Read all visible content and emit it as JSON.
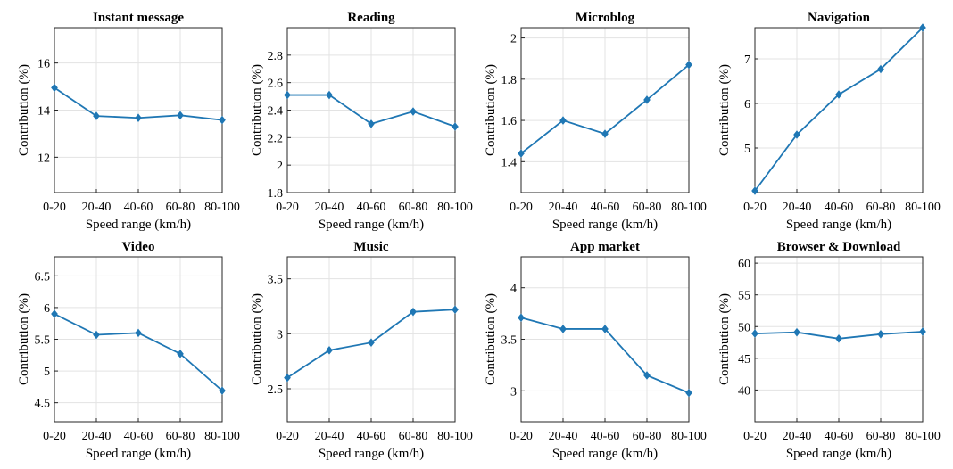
{
  "chart_data": [
    {
      "type": "line",
      "title": "Instant message",
      "xlabel": "Speed range (km/h)",
      "ylabel": "Contribution (%)",
      "categories": [
        "0-20",
        "20-40",
        "40-60",
        "60-80",
        "80-100"
      ],
      "series": [
        {
          "values": [
            14.95,
            13.75,
            13.67,
            13.78,
            13.58
          ]
        }
      ],
      "ylim": [
        10.5,
        17.5
      ],
      "yticks": [
        12,
        14,
        16
      ],
      "ytick_labels": [
        "12",
        "14",
        "16"
      ],
      "grid": true,
      "color": "#1f77b4"
    },
    {
      "type": "line",
      "title": "Reading",
      "xlabel": "Speed range (km/h)",
      "ylabel": "Contribution (%)",
      "categories": [
        "0-20",
        "20-40",
        "40-60",
        "60-80",
        "80-100"
      ],
      "series": [
        {
          "values": [
            2.51,
            2.51,
            2.3,
            2.39,
            2.28
          ]
        }
      ],
      "ylim": [
        1.8,
        3.0
      ],
      "yticks": [
        1.8,
        2.0,
        2.2,
        2.4,
        2.6,
        2.8
      ],
      "ytick_labels": [
        "1.8",
        "2",
        "2.2",
        "2.4",
        "2.6",
        "2.8"
      ],
      "grid": true,
      "color": "#1f77b4"
    },
    {
      "type": "line",
      "title": "Microblog",
      "xlabel": "Speed range (km/h)",
      "ylabel": "Contribution (%)",
      "categories": [
        "0-20",
        "20-40",
        "40-60",
        "60-80",
        "80-100"
      ],
      "series": [
        {
          "values": [
            1.44,
            1.6,
            1.535,
            1.7,
            1.87
          ]
        }
      ],
      "ylim": [
        1.25,
        2.05
      ],
      "yticks": [
        1.4,
        1.6,
        1.8,
        2.0
      ],
      "ytick_labels": [
        "1.4",
        "1.6",
        "1.8",
        "2"
      ],
      "grid": true,
      "color": "#1f77b4"
    },
    {
      "type": "line",
      "title": "Navigation",
      "xlabel": "Speed range (km/h)",
      "ylabel": "Contribution (%)",
      "categories": [
        "0-20",
        "20-40",
        "40-60",
        "60-80",
        "80-100"
      ],
      "series": [
        {
          "values": [
            4.04,
            5.3,
            6.2,
            6.77,
            7.7
          ]
        }
      ],
      "ylim": [
        4.0,
        7.7
      ],
      "yticks": [
        5,
        6,
        7
      ],
      "ytick_labels": [
        "5",
        "6",
        "7"
      ],
      "grid": true,
      "color": "#1f77b4"
    },
    {
      "type": "line",
      "title": "Video",
      "xlabel": "Speed range (km/h)",
      "ylabel": "Contribution (%)",
      "categories": [
        "0-20",
        "20-40",
        "40-60",
        "60-80",
        "80-100"
      ],
      "series": [
        {
          "values": [
            5.9,
            5.57,
            5.6,
            5.27,
            4.69
          ]
        }
      ],
      "ylim": [
        4.2,
        6.8
      ],
      "yticks": [
        4.5,
        5.0,
        5.5,
        6.0,
        6.5
      ],
      "ytick_labels": [
        "4.5",
        "5",
        "5.5",
        "6",
        "6.5"
      ],
      "grid": true,
      "color": "#1f77b4"
    },
    {
      "type": "line",
      "title": "Music",
      "xlabel": "Speed range (km/h)",
      "ylabel": "Contribution (%)",
      "categories": [
        "0-20",
        "20-40",
        "40-60",
        "60-80",
        "80-100"
      ],
      "series": [
        {
          "values": [
            2.6,
            2.85,
            2.92,
            3.2,
            3.22
          ]
        }
      ],
      "ylim": [
        2.2,
        3.7
      ],
      "yticks": [
        2.5,
        3.0,
        3.5
      ],
      "ytick_labels": [
        "2.5",
        "3",
        "3.5"
      ],
      "grid": true,
      "color": "#1f77b4"
    },
    {
      "type": "line",
      "title": "App market",
      "xlabel": "Speed range (km/h)",
      "ylabel": "Contribution (%)",
      "categories": [
        "0-20",
        "20-40",
        "40-60",
        "60-80",
        "80-100"
      ],
      "series": [
        {
          "values": [
            3.71,
            3.6,
            3.6,
            3.15,
            2.98
          ]
        }
      ],
      "ylim": [
        2.7,
        4.3
      ],
      "yticks": [
        3.0,
        3.5,
        4.0
      ],
      "ytick_labels": [
        "3",
        "3.5",
        "4"
      ],
      "grid": true,
      "color": "#1f77b4"
    },
    {
      "type": "line",
      "title": "Browser & Download",
      "xlabel": "Speed range (km/h)",
      "ylabel": "Contribution (%)",
      "categories": [
        "0-20",
        "20-40",
        "40-60",
        "60-80",
        "80-100"
      ],
      "series": [
        {
          "values": [
            48.9,
            49.1,
            48.1,
            48.8,
            49.2
          ]
        }
      ],
      "ylim": [
        35,
        61
      ],
      "yticks": [
        40,
        45,
        50,
        55,
        60
      ],
      "ytick_labels": [
        "40",
        "45",
        "50",
        "55",
        "60"
      ],
      "grid": true,
      "color": "#1f77b4"
    }
  ]
}
